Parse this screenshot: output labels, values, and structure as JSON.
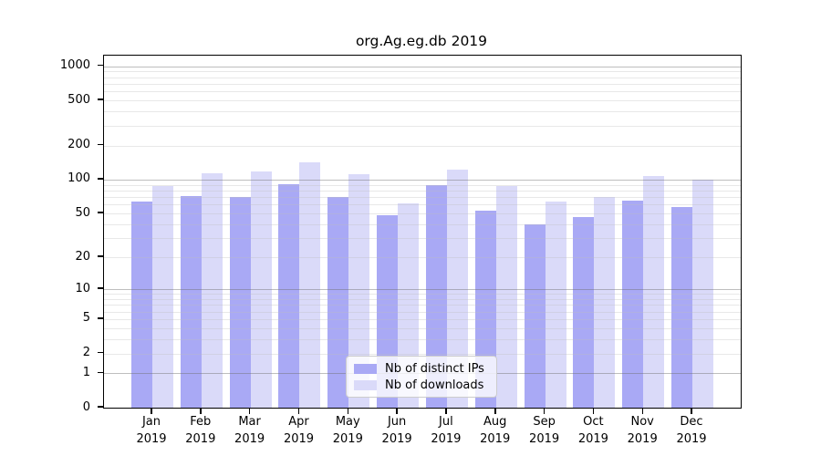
{
  "chart_data": {
    "type": "bar",
    "title": "org.Ag.eg.db 2019",
    "categories": [
      "Jan",
      "Feb",
      "Mar",
      "Apr",
      "May",
      "Jun",
      "Jul",
      "Aug",
      "Sep",
      "Oct",
      "Nov",
      "Dec"
    ],
    "x_tick_year": "2019",
    "xlabel": "",
    "ylabel": "",
    "y_scale": "log1p",
    "y_ticks": [
      0,
      1,
      2,
      5,
      10,
      20,
      50,
      100,
      200,
      500,
      1000
    ],
    "y_major_gridlines": [
      1,
      10,
      100,
      1000
    ],
    "ylim": [
      0,
      1240
    ],
    "grid": "on",
    "legend_position": "lower center",
    "series": [
      {
        "name": "Nb of distinct IPs",
        "color": "#a9a9f5",
        "values": [
          64,
          72,
          70,
          91,
          70,
          48,
          89,
          53,
          40,
          46,
          65,
          57
        ]
      },
      {
        "name": "Nb of downloads",
        "color": "#dadaf9",
        "values": [
          88,
          113,
          118,
          142,
          111,
          62,
          123,
          87,
          64,
          70,
          108,
          100
        ]
      }
    ]
  }
}
